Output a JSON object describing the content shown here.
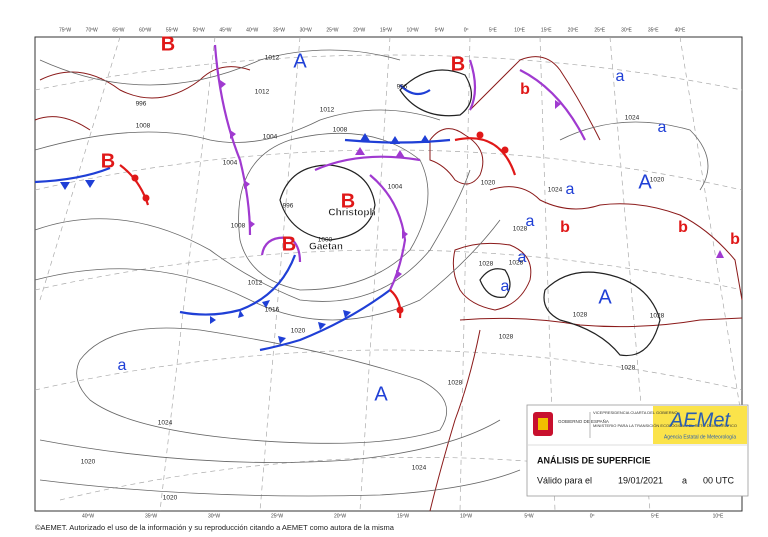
{
  "map": {
    "top_longitudes": [
      "75ºW",
      "70ºW",
      "65ºW",
      "60ºW",
      "55ºW",
      "50ºW",
      "45ºW",
      "40ºW",
      "35ºW",
      "30ºW",
      "25ºW",
      "20ºW",
      "15ºW",
      "10ºW",
      "5ºW",
      "0º",
      "5ºE",
      "10ºE",
      "15ºE",
      "20ºE",
      "25ºE",
      "30ºE",
      "35ºE",
      "40ºE"
    ],
    "bottom_longitudes": [
      "40ºW",
      "35ºW",
      "30ºW",
      "25ºW",
      "20ºW",
      "15ºW",
      "10ºW",
      "5ºW",
      "0º",
      "5ºE",
      "10ºE"
    ],
    "pressure_centers": [
      "B",
      "A",
      "B",
      "a",
      "a",
      "b",
      "B",
      "B",
      "B",
      "A",
      "a",
      "a",
      "b",
      "b",
      "b",
      "a",
      "a",
      "A",
      "a",
      "A"
    ],
    "storm_names": [
      "Christoph",
      "Gaetan"
    ],
    "isobar_labels": [
      1012,
      1012,
      996,
      1008,
      1012,
      1004,
      1008,
      996,
      1004,
      1008,
      996,
      1000,
      1004,
      1012,
      1016,
      1020,
      1020,
      1024,
      1028,
      1024,
      1020,
      1020,
      1024,
      1028,
      1028,
      1028,
      1028,
      1028,
      1028,
      1028,
      1024,
      1020
    ]
  },
  "legend": {
    "government": "GOBIERNO DE ESPAÑA",
    "vice_presidency": "VICEPRESIDENCIA CUARTA DEL GOBIERNO",
    "ministry": "MINISTERIO PARA LA TRANSICIÓN ECOLÓGICA Y EL RETO DEMOGRÁFICO",
    "brand": "AEMet",
    "brand_subtitle": "Agencia Estatal de Meteorología",
    "title": "ANÁLISIS DE SUPERFICIE",
    "valid_label": "Válido para el",
    "date": "19/01/2021",
    "at": "a",
    "time": "00 UTC"
  },
  "footer": "©AEMET. Autorizado el uso de la información y su reproducción citando a AEMET como autora de la misma"
}
